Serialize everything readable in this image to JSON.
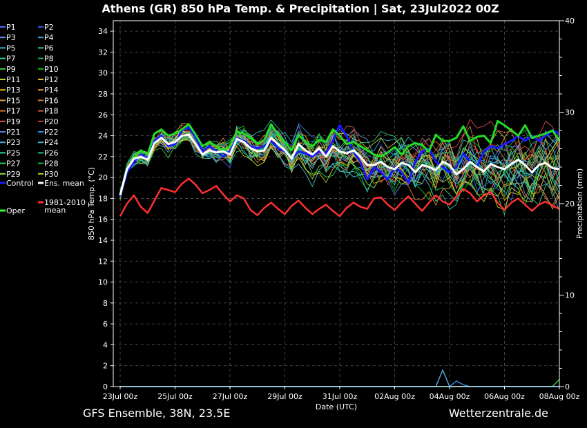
{
  "chart_data": {
    "type": "line",
    "title": "Athens  (GR)  850 hPa Temp. & Precipitation | Sat, 23Jul2022 00Z",
    "xlabel": "Date (UTC)",
    "ylabel": "850 hPa Temp. (°C)",
    "y2label": "Precipitation (mm)",
    "ylim": [
      0,
      35
    ],
    "y2lim": [
      0,
      40
    ],
    "yticks": [
      "0",
      "2",
      "4",
      "6",
      "8",
      "10",
      "12",
      "14",
      "16",
      "18",
      "20",
      "22",
      "24",
      "26",
      "28",
      "30",
      "32",
      "34"
    ],
    "y2ticks": [
      "0",
      "10",
      "20",
      "30",
      "40"
    ],
    "xticks": [
      "23Jul 00z",
      "25Jul 00z",
      "27Jul 00z",
      "29Jul 00z",
      "31Jul 00z",
      "02Aug 00z",
      "04Aug 00z",
      "06Aug 00z",
      "08Aug 00z"
    ],
    "x_range_days": [
      0,
      16
    ],
    "step_hours": 6,
    "grid": true,
    "footer_left": "GFS Ensemble, 38N, 23.5E",
    "footer_right": "Wetterzentrale.de",
    "legend": [
      {
        "name": "P1",
        "color": "#4a6cff"
      },
      {
        "name": "P2",
        "color": "#3a5ad8"
      },
      {
        "name": "P3",
        "color": "#6f8fe0"
      },
      {
        "name": "P4",
        "color": "#3aa0d0"
      },
      {
        "name": "P5",
        "color": "#2fb8c8"
      },
      {
        "name": "P6",
        "color": "#2fc8a0"
      },
      {
        "name": "P7",
        "color": "#2fd088"
      },
      {
        "name": "P8",
        "color": "#20b060"
      },
      {
        "name": "P9",
        "color": "#40d040"
      },
      {
        "name": "P10",
        "color": "#10c010"
      },
      {
        "name": "P11",
        "color": "#c8d040"
      },
      {
        "name": "P12",
        "color": "#e0c030"
      },
      {
        "name": "P13",
        "color": "#f0b000"
      },
      {
        "name": "P14",
        "color": "#f09020"
      },
      {
        "name": "P15",
        "color": "#e8a050"
      },
      {
        "name": "P16",
        "color": "#d08040"
      },
      {
        "name": "P17",
        "color": "#e07030"
      },
      {
        "name": "P18",
        "color": "#d06040"
      },
      {
        "name": "P19",
        "color": "#e05050"
      },
      {
        "name": "P20",
        "color": "#c04040"
      },
      {
        "name": "P21",
        "color": "#5080e0"
      },
      {
        "name": "P22",
        "color": "#3090f0"
      },
      {
        "name": "P23",
        "color": "#50b0e0"
      },
      {
        "name": "P24",
        "color": "#40c0d0"
      },
      {
        "name": "P25",
        "color": "#30d0b0"
      },
      {
        "name": "P26",
        "color": "#20c090"
      },
      {
        "name": "P27",
        "color": "#30d070"
      },
      {
        "name": "P28",
        "color": "#20b050"
      },
      {
        "name": "P29",
        "color": "#90e040"
      },
      {
        "name": "P30",
        "color": "#d0d020"
      },
      {
        "name": "Control",
        "color": "#1818ff"
      },
      {
        "name": "Ens. mean",
        "color": "#ffffff"
      },
      {
        "name": "1981-2010\nmean",
        "color": "#ff3030"
      },
      {
        "name": "Oper",
        "color": "#30ff30"
      }
    ],
    "series": [
      {
        "name": "Control",
        "color": "#1818ff",
        "width": 3,
        "values": [
          18.2,
          20.5,
          21.5,
          22.2,
          21.8,
          23.5,
          24.0,
          23.0,
          23.2,
          24.5,
          24.8,
          23.8,
          22.5,
          23.0,
          22.5,
          22.0,
          22.5,
          23.8,
          23.5,
          23.0,
          22.8,
          23.0,
          23.5,
          22.8,
          22.5,
          21.8,
          22.5,
          22.3,
          22.0,
          22.5,
          22.3,
          23.5,
          25.0,
          24.0,
          22.5,
          21.5,
          19.8,
          21.0,
          20.5,
          19.8,
          21.0,
          20.5,
          19.5,
          21.5,
          22.5,
          22.8,
          21.5,
          21.0,
          20.5,
          21.0,
          22.3,
          21.5,
          21.0,
          22.5,
          23.0,
          22.8,
          23.2,
          23.5,
          24.0,
          23.5,
          24.0,
          23.5,
          24.0,
          24.5,
          24.2
        ]
      },
      {
        "name": "Ens. mean",
        "color": "#ffffff",
        "width": 3,
        "values": [
          18.3,
          20.8,
          21.8,
          22.0,
          21.7,
          23.3,
          23.8,
          23.2,
          23.4,
          24.0,
          24.1,
          23.2,
          22.2,
          22.6,
          22.4,
          22.5,
          22.2,
          23.7,
          23.4,
          22.8,
          22.5,
          22.6,
          23.8,
          23.2,
          22.6,
          21.8,
          23.2,
          22.6,
          22.2,
          22.8,
          22.0,
          23.0,
          22.5,
          22.3,
          22.6,
          22.0,
          21.2,
          21.2,
          21.5,
          21.0,
          20.8,
          21.4,
          21.2,
          20.5,
          21.2,
          21.0,
          20.7,
          21.5,
          21.2,
          20.3,
          20.8,
          21.5,
          21.0,
          20.6,
          21.3,
          21.0,
          20.8,
          21.3,
          21.7,
          21.2,
          20.5,
          21.2,
          21.4,
          20.9,
          20.8
        ]
      },
      {
        "name": "Oper",
        "color": "#22dd22",
        "width": 3,
        "values": [
          18.4,
          20.8,
          21.9,
          22.6,
          22.2,
          24.2,
          24.6,
          24.0,
          24.2,
          24.6,
          25.1,
          24.1,
          23.0,
          23.4,
          23.0,
          22.6,
          23.0,
          24.4,
          24.2,
          23.8,
          23.2,
          23.6,
          25.1,
          24.1,
          23.4,
          22.6,
          24.1,
          23.4,
          23.0,
          23.6,
          23.4,
          24.6,
          24.0,
          23.2,
          23.4,
          23.0,
          22.6,
          22.2,
          22.0,
          22.4,
          22.9,
          22.2,
          23.0,
          23.3,
          23.1,
          22.5,
          24.1,
          23.5,
          23.5,
          23.8,
          24.9,
          23.5,
          23.9,
          24.0,
          23.3,
          25.4,
          25.0,
          24.5,
          24.0,
          25.0,
          23.8,
          24.0,
          24.2,
          24.5,
          23.5
        ]
      },
      {
        "name": "1981-2010 mean",
        "color": "#ff3030",
        "width": 2.5,
        "values": [
          16.3,
          17.5,
          18.3,
          17.2,
          16.6,
          17.8,
          19.0,
          18.8,
          18.6,
          19.4,
          19.9,
          19.3,
          18.5,
          18.8,
          19.2,
          18.4,
          17.7,
          18.3,
          18.0,
          16.9,
          16.4,
          17.1,
          17.6,
          17.0,
          16.5,
          17.3,
          17.8,
          17.1,
          16.5,
          17.0,
          17.4,
          16.8,
          16.3,
          17.1,
          17.6,
          17.2,
          17.0,
          18.0,
          18.1,
          17.4,
          16.9,
          17.6,
          18.2,
          17.5,
          16.8,
          17.6,
          18.3,
          17.7,
          17.4,
          18.2,
          18.9,
          18.5,
          17.7,
          18.3,
          18.6,
          17.6,
          16.9,
          17.6,
          18.0,
          17.4,
          16.8,
          17.4,
          17.7,
          17.3,
          17.0
        ]
      }
    ],
    "precipitation": [
      {
        "name": "Oper",
        "values": [
          0,
          0,
          0,
          0,
          0,
          0,
          0,
          0,
          0,
          0,
          0,
          0,
          0,
          0,
          0,
          0,
          0,
          0,
          0,
          0,
          0,
          0,
          0,
          0,
          0,
          0,
          0,
          0,
          0,
          0,
          0,
          0,
          0,
          0,
          0,
          0,
          0,
          0,
          0,
          0,
          0,
          0,
          0,
          0,
          0,
          0,
          0,
          0,
          0,
          0,
          0,
          0,
          0,
          0,
          0,
          0,
          0,
          0,
          0,
          0,
          0,
          0,
          0,
          0,
          0.8
        ]
      },
      {
        "name": "P23",
        "values": [
          0,
          0,
          0,
          0,
          0,
          0,
          0,
          0,
          0,
          0,
          0,
          0,
          0,
          0,
          0,
          0,
          0,
          0,
          0,
          0,
          0,
          0,
          0,
          0,
          0,
          0,
          0,
          0,
          0,
          0,
          0,
          0,
          0,
          0,
          0,
          0,
          0,
          0,
          0,
          0,
          0,
          0,
          0,
          0,
          0,
          0,
          0,
          1.8,
          0,
          0,
          0,
          0,
          0,
          0,
          0,
          0,
          0,
          0,
          0,
          0,
          0,
          0,
          0,
          0,
          0
        ]
      },
      {
        "name": "P22",
        "values": [
          0,
          0,
          0,
          0,
          0,
          0,
          0,
          0,
          0,
          0,
          0,
          0,
          0,
          0,
          0,
          0,
          0,
          0,
          0,
          0,
          0,
          0,
          0,
          0,
          0,
          0,
          0,
          0,
          0,
          0,
          0,
          0,
          0,
          0,
          0,
          0,
          0,
          0,
          0,
          0,
          0,
          0,
          0,
          0,
          0,
          0,
          0,
          0,
          0,
          0.6,
          0.2,
          0,
          0,
          0,
          0,
          0,
          0,
          0,
          0,
          0,
          0,
          0,
          0,
          0,
          0
        ]
      }
    ]
  }
}
